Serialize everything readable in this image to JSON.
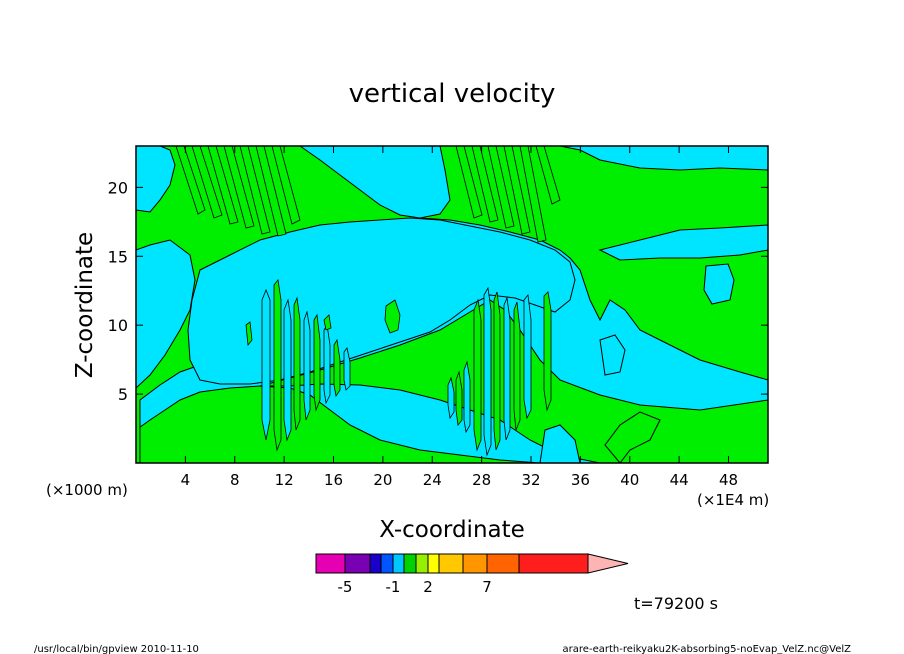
{
  "chart_data": {
    "type": "heatmap",
    "title": "vertical velocity",
    "xlabel": "X-coordinate",
    "ylabel": "Z-coordinate",
    "x_unit_left": "(×1000 m)",
    "x_unit_right": "(×1E4 m)",
    "x_ticks": [
      "4",
      "8",
      "12",
      "16",
      "20",
      "24",
      "28",
      "32",
      "36",
      "40",
      "44",
      "48"
    ],
    "y_ticks": [
      "5",
      "10",
      "15",
      "20"
    ],
    "xlim": [
      0,
      51.2
    ],
    "ylim": [
      0,
      23
    ],
    "regions": [
      {
        "name": "negative",
        "color": "#00e5ff"
      },
      {
        "name": "positive",
        "color": "#00ee00"
      }
    ],
    "colorbar": {
      "colors": [
        "#e600b4",
        "#7a00b4",
        "#1a00c8",
        "#0055ff",
        "#00c8ff",
        "#00d200",
        "#96f000",
        "#ffff00",
        "#ffc800",
        "#ff9600",
        "#ff6400",
        "#ff1e1e",
        "#ff7878"
      ],
      "tick_labels": [
        "-5",
        "-1",
        "2",
        "7"
      ],
      "tip_color": "#ffb4b4"
    },
    "time_label": "t=79200 s"
  },
  "footer": {
    "left": "/usr/local/bin/gpview  2010-11-10",
    "right": "arare-earth-reikyaku2K-absorbing5-noEvap_VelZ.nc@VelZ"
  }
}
